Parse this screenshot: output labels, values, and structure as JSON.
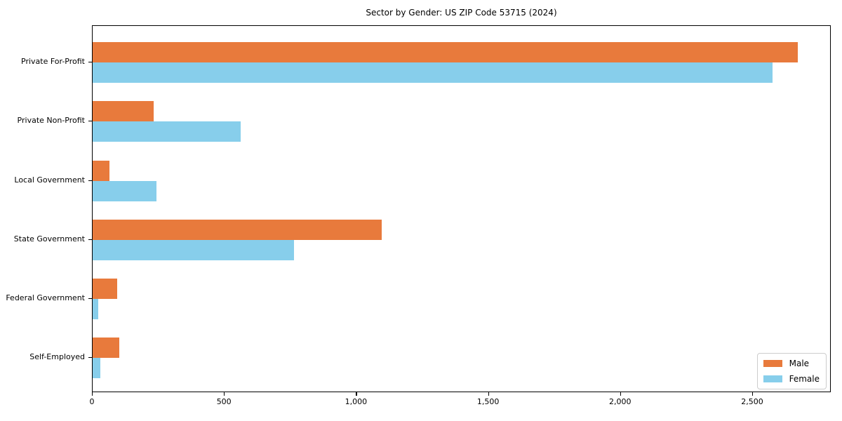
{
  "title": "Sector by Gender: US ZIP Code 53715 (2024)",
  "chart_data": {
    "type": "bar",
    "orientation": "horizontal",
    "title": "Sector by Gender: US ZIP Code 53715 (2024)",
    "categories": [
      "Private For-Profit",
      "Private Non-Profit",
      "Local Government",
      "State Government",
      "Federal Government",
      "Self-Employed"
    ],
    "series": [
      {
        "name": "Male",
        "color": "#E87A3C",
        "values": [
          2670,
          230,
          65,
          1095,
          92,
          100
        ]
      },
      {
        "name": "Female",
        "color": "#87CEEB",
        "values": [
          2575,
          560,
          242,
          762,
          20,
          30
        ]
      }
    ],
    "xlabel": "",
    "ylabel": "",
    "xlim": [
      0,
      2800
    ],
    "x_ticks": [
      0,
      500,
      1000,
      1500,
      2000,
      2500
    ],
    "x_tick_labels": [
      "0",
      "500",
      "1,000",
      "1,500",
      "2,000",
      "2,500"
    ],
    "grid": false,
    "legend_position": "lower right"
  },
  "legend": {
    "items": [
      {
        "label": "Male",
        "color": "#E87A3C"
      },
      {
        "label": "Female",
        "color": "#87CEEB"
      }
    ]
  }
}
